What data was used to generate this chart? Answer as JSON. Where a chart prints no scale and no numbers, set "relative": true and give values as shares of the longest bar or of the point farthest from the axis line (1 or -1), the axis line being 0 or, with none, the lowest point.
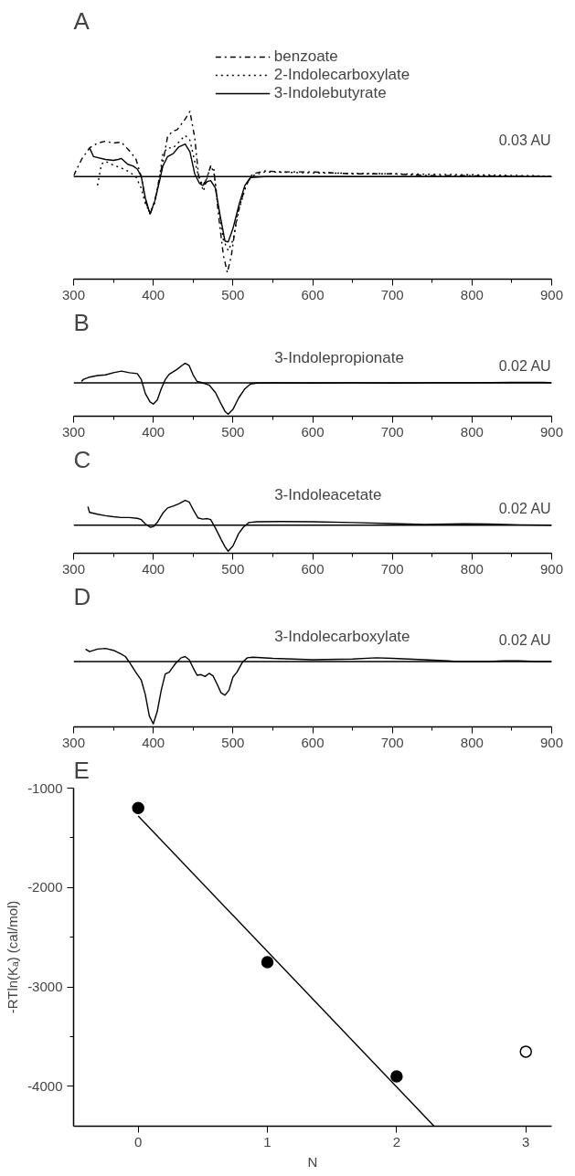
{
  "chart_data": [
    {
      "type": "line",
      "title": "A",
      "relative": true,
      "xlim": [
        300,
        900
      ],
      "xticks": [
        300,
        {
          "value": 350,
          "label": null
        },
        400,
        {
          "value": 450,
          "label": null
        },
        500,
        {
          "value": 550,
          "label": null
        },
        600,
        {
          "value": 650,
          "label": null
        },
        700,
        {
          "value": 750,
          "label": null
        },
        800,
        {
          "value": 850,
          "label": null
        },
        900
      ],
      "legend": "top",
      "grid": false,
      "series": [
        {
          "name": "benzoate",
          "color": "#000000",
          "line_style": "dashdot",
          "x": [
            300,
            310,
            320,
            330,
            340,
            350,
            360,
            370,
            378,
            385,
            390,
            396,
            402,
            408,
            413,
            418,
            424,
            430,
            440,
            446,
            452,
            457,
            462,
            466,
            472,
            476,
            482,
            488,
            493,
            498,
            505,
            515,
            522,
            525,
            540,
            560,
            600,
            650,
            700,
            750,
            800,
            900
          ],
          "values": [
            0.01,
            0.18,
            0.3,
            0.35,
            0.37,
            0.35,
            0.36,
            0.27,
            0.19,
            0,
            -0.25,
            -0.39,
            -0.25,
            0,
            0.19,
            0.42,
            0.47,
            0.49,
            0.6,
            0.68,
            0.41,
            0,
            -0.09,
            -0.04,
            0.11,
            0.08,
            -0.41,
            -0.82,
            -1,
            -0.82,
            -0.41,
            -0.12,
            0,
            0.03,
            0.06,
            0.05,
            0.05,
            0.03,
            0.03,
            0.01,
            0.01,
            0
          ]
        },
        {
          "name": "2-Indolecarboxylate",
          "color": "#000000",
          "line_style": "dotted",
          "x": [
            330,
            335,
            340,
            350,
            360,
            370,
            378,
            385,
            390,
            396,
            402,
            408,
            412,
            418,
            425,
            432,
            440,
            446,
            452,
            457,
            463,
            468,
            472,
            476,
            482,
            488,
            494,
            500,
            508,
            518,
            525,
            540,
            600,
            700,
            800,
            880,
            900
          ],
          "values": [
            -0.09,
            0.13,
            0.16,
            0.12,
            0.09,
            0.05,
            0,
            -0.12,
            -0.28,
            -0.38,
            -0.27,
            0,
            0.24,
            0.3,
            0.3,
            0.36,
            0.43,
            0.38,
            0.16,
            0,
            -0.15,
            0,
            0.11,
            0.05,
            -0.33,
            -0.66,
            -0.77,
            -0.66,
            -0.33,
            -0.05,
            0.01,
            0.05,
            0.04,
            0.03,
            0.02,
            0.01,
            0
          ]
        },
        {
          "name": "3-Indolebutyrate",
          "color": "#000000",
          "line_style": "solid",
          "x": [
            320,
            325,
            340,
            350,
            356,
            360,
            368,
            375,
            380,
            385,
            390,
            396,
            402,
            408,
            412,
            418,
            425,
            432,
            440,
            446,
            452,
            458,
            462,
            468,
            472,
            478,
            484,
            490,
            494,
            500,
            508,
            515,
            522,
            540,
            900
          ],
          "values": [
            0.3,
            0.21,
            0.18,
            0.17,
            0.18,
            0.19,
            0.13,
            0.11,
            0.08,
            0,
            -0.22,
            -0.39,
            -0.25,
            -0.04,
            0.11,
            0.21,
            0.24,
            0.31,
            0.34,
            0.26,
            0.03,
            -0.07,
            -0.09,
            -0.05,
            -0.04,
            -0.12,
            -0.41,
            -0.67,
            -0.68,
            -0.54,
            -0.28,
            -0.09,
            -0.01,
            0,
            0
          ]
        }
      ],
      "annotations": [
        "0.03 AU"
      ]
    },
    {
      "type": "line",
      "title": "B",
      "relative": true,
      "xlim": [
        300,
        900
      ],
      "xticks": [
        300,
        {
          "value": 350,
          "label": null
        },
        400,
        {
          "value": 450,
          "label": null
        },
        500,
        {
          "value": 550,
          "label": null
        },
        600,
        {
          "value": 650,
          "label": null
        },
        700,
        {
          "value": 750,
          "label": null
        },
        800,
        {
          "value": 850,
          "label": null
        },
        900
      ],
      "grid": false,
      "series": [
        {
          "name": "3-Indolepropionate",
          "color": "#000000",
          "line_style": "solid",
          "x": [
            310,
            312,
            320,
            330,
            340,
            350,
            360,
            370,
            380,
            385,
            390,
            396,
            400,
            405,
            410,
            415,
            420,
            430,
            436,
            440,
            445,
            450,
            455,
            460,
            470,
            478,
            485,
            490,
            494,
            500,
            507,
            515,
            522,
            530,
            550,
            600,
            650,
            700,
            750,
            800,
            850,
            890,
            900
          ],
          "values": [
            0.04,
            0.1,
            0.18,
            0.23,
            0.25,
            0.32,
            0.37,
            0.32,
            0.29,
            0.1,
            -0.34,
            -0.61,
            -0.68,
            -0.55,
            -0.19,
            0.1,
            0.27,
            0.43,
            0.55,
            0.62,
            0.55,
            0.25,
            0.04,
            0.01,
            -0.07,
            -0.31,
            -0.67,
            -0.91,
            -1,
            -0.85,
            -0.49,
            -0.19,
            -0.04,
            -0.01,
            0,
            -0.01,
            0,
            -0.01,
            0,
            0,
            0.01,
            0.01,
            0
          ]
        }
      ],
      "annotations": [
        "0.02 AU"
      ]
    },
    {
      "type": "line",
      "title": "C",
      "relative": true,
      "xlim": [
        300,
        900
      ],
      "xticks": [
        300,
        {
          "value": 350,
          "label": null
        },
        400,
        {
          "value": 450,
          "label": null
        },
        500,
        {
          "value": 550,
          "label": null
        },
        600,
        {
          "value": 650,
          "label": null
        },
        700,
        {
          "value": 750,
          "label": null
        },
        800,
        {
          "value": 850,
          "label": null
        },
        900
      ],
      "grid": false,
      "series": [
        {
          "name": "3-Indoleacetate",
          "color": "#000000",
          "line_style": "solid",
          "x": [
            318,
            320,
            330,
            340,
            350,
            360,
            370,
            380,
            385,
            390,
            396,
            400,
            405,
            412,
            418,
            425,
            432,
            440,
            445,
            450,
            456,
            462,
            468,
            472,
            478,
            485,
            490,
            494,
            500,
            507,
            513,
            520,
            530,
            560,
            600,
            650,
            700,
            740,
            790,
            820,
            860,
            900
          ],
          "values": [
            0.71,
            0.49,
            0.42,
            0.36,
            0.32,
            0.29,
            0.29,
            0.26,
            0.21,
            0.05,
            -0.08,
            -0.06,
            0.1,
            0.46,
            0.66,
            0.73,
            0.82,
            0.95,
            0.89,
            0.6,
            0.28,
            0.23,
            0.25,
            0.21,
            -0.11,
            -0.54,
            -0.83,
            -1,
            -0.8,
            -0.33,
            -0.08,
            0.1,
            0.13,
            0.14,
            0.13,
            0.1,
            0.06,
            0.03,
            0.05,
            0.04,
            0.01,
            0
          ]
        }
      ],
      "annotations": [
        "0.02 AU"
      ]
    },
    {
      "type": "line",
      "title": "D",
      "relative": true,
      "xlim": [
        300,
        900
      ],
      "xticks": [
        300,
        {
          "value": 350,
          "label": null
        },
        400,
        {
          "value": 450,
          "label": null
        },
        500,
        {
          "value": 550,
          "label": null
        },
        600,
        {
          "value": 650,
          "label": null
        },
        700,
        {
          "value": 750,
          "label": null
        },
        800,
        {
          "value": 850,
          "label": null
        },
        900
      ],
      "grid": false,
      "series": [
        {
          "name": "3-Indolecarboxylate",
          "color": "#000000",
          "line_style": "solid",
          "x": [
            315,
            320,
            330,
            340,
            350,
            360,
            365,
            370,
            378,
            385,
            390,
            395,
            400,
            405,
            410,
            415,
            420,
            428,
            435,
            440,
            445,
            450,
            455,
            460,
            465,
            470,
            475,
            480,
            485,
            490,
            495,
            500,
            505,
            512,
            518,
            525,
            550,
            600,
            650,
            680,
            700,
            740,
            770,
            780,
            820,
            840,
            860,
            880,
            900
          ],
          "values": [
            0.2,
            0.16,
            0.2,
            0.21,
            0.18,
            0.12,
            0.08,
            -0.01,
            -0.17,
            -0.3,
            -0.53,
            -0.87,
            -1,
            -0.8,
            -0.46,
            -0.2,
            -0.17,
            -0.03,
            0.06,
            0.08,
            0.03,
            -0.1,
            -0.22,
            -0.21,
            -0.24,
            -0.19,
            -0.23,
            -0.36,
            -0.5,
            -0.54,
            -0.46,
            -0.25,
            -0.17,
            -0.01,
            0.06,
            0.07,
            0.05,
            0.03,
            0.04,
            0.06,
            0.05,
            0.03,
            0.01,
            0,
            0,
            0.01,
            0.01,
            0,
            0
          ]
        }
      ],
      "annotations": [
        "0.02 AU"
      ]
    },
    {
      "type": "scatter",
      "title": "E",
      "xlabel": "N",
      "ylabel": "-RTln(Kₐ) (cal/mol)",
      "xlim": [
        -0.5,
        3.2
      ],
      "ylim": [
        -4400,
        -1000
      ],
      "xticks": [
        0,
        1,
        2,
        3
      ],
      "yticks": [
        -1000,
        {
          "value": -1500,
          "label": null
        },
        -2000,
        {
          "value": -2500,
          "label": null
        },
        -3000,
        {
          "value": -3500,
          "label": null
        },
        -4000
      ],
      "marker": "circle",
      "grid": false,
      "series": [
        {
          "color": "#000000",
          "x": [
            0,
            1,
            2
          ],
          "values": [
            -1200,
            -2750,
            -3900
          ]
        },
        {
          "color": "#ffffff",
          "x": [
            3
          ],
          "values": [
            -3650
          ]
        },
        {
          "type": "line",
          "color": "#000000",
          "line_style": "solid",
          "marker": "none",
          "x": [
            0,
            2.29
          ],
          "values": [
            -1280,
            -4400
          ]
        }
      ]
    }
  ]
}
